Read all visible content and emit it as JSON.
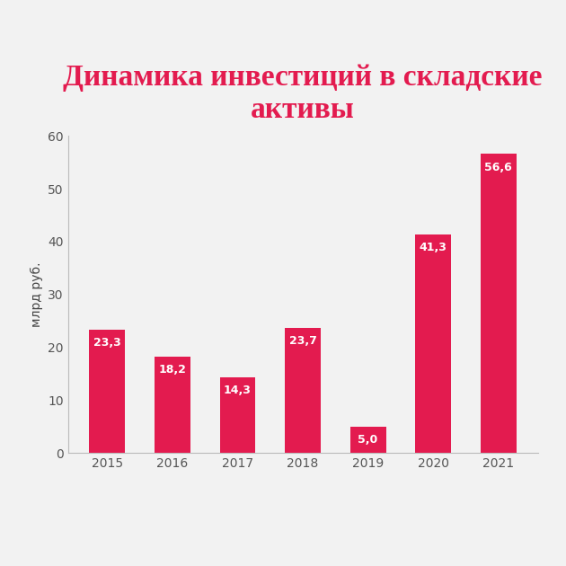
{
  "chart_data": {
    "type": "bar",
    "title": "Динамика инвестиций в складские активы",
    "y_label": "млрд руб.",
    "categories": [
      "2015",
      "2016",
      "2017",
      "2018",
      "2019",
      "2020",
      "2021"
    ],
    "values": [
      23.3,
      18.2,
      14.3,
      23.7,
      5.0,
      41.3,
      56.6
    ],
    "value_labels": [
      "23,3",
      "18,2",
      "14,3",
      "23,7",
      "5,0",
      "41,3",
      "56,6"
    ],
    "color": "#e31b4f",
    "ylim": [
      0,
      60
    ],
    "yticks": [
      0,
      10,
      20,
      30,
      40,
      50,
      60
    ],
    "grid": false,
    "data_labels": true
  }
}
